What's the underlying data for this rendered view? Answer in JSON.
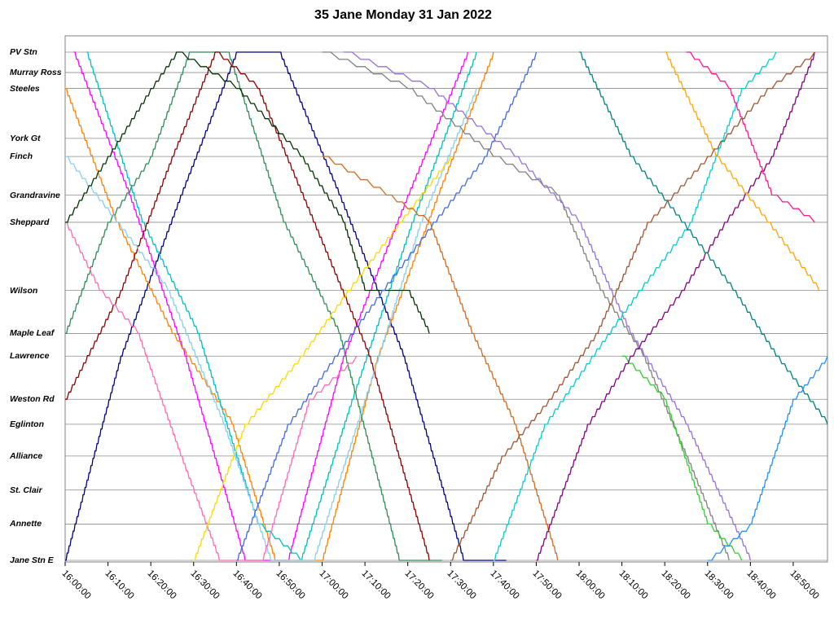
{
  "chart_data": {
    "type": "line",
    "title": "35 Jane Monday 31 Jan 2022",
    "stops": [
      {
        "name": "PV Stn",
        "km": 0
      },
      {
        "name": "Murray Ross",
        "km": 0.9
      },
      {
        "name": "Steeles",
        "km": 1.6
      },
      {
        "name": "York Gt",
        "km": 3.8
      },
      {
        "name": "Finch",
        "km": 4.6
      },
      {
        "name": "Grandravine",
        "km": 6.3
      },
      {
        "name": "Sheppard",
        "km": 7.5
      },
      {
        "name": "Wilson",
        "km": 10.5
      },
      {
        "name": "Maple Leaf",
        "km": 12.4
      },
      {
        "name": "Lawrence",
        "km": 13.4
      },
      {
        "name": "Weston Rd",
        "km": 15.3
      },
      {
        "name": "Eglinton",
        "km": 16.4
      },
      {
        "name": "Alliance",
        "km": 17.8
      },
      {
        "name": "St. Clair",
        "km": 19.3
      },
      {
        "name": "Annette",
        "km": 20.8
      },
      {
        "name": "Jane Stn E",
        "km": 22.4
      }
    ],
    "x_ticks": [
      "16:00:00",
      "16:10:00",
      "16:20:00",
      "16:30:00",
      "16:40:00",
      "16:50:00",
      "17:00:00",
      "17:10:00",
      "17:20:00",
      "17:30:00",
      "17:40:00",
      "17:50:00",
      "18:00:00",
      "18:10:00",
      "18:20:00",
      "18:30:00",
      "18:40:00",
      "18:50:00"
    ],
    "xlim": [
      "16:00:00",
      "18:58:00"
    ],
    "grid": "horizontal lines at each stop",
    "series": [
      {
        "color": "#000080",
        "points": [
          [
            "16:00",
            "Jane Stn E"
          ],
          [
            "16:13",
            "Lawrence"
          ],
          [
            "16:27",
            "Grandravine"
          ],
          [
            "16:40",
            "PV Stn"
          ],
          [
            "16:50",
            "PV Stn"
          ],
          [
            "17:04",
            "Grandravine"
          ],
          [
            "17:19",
            "Lawrence"
          ],
          [
            "17:33",
            "Jane Stn E"
          ],
          [
            "17:43",
            "Jane Stn E"
          ]
        ]
      },
      {
        "color": "#ff00ff",
        "points": [
          [
            "16:02",
            "PV Stn"
          ],
          [
            "16:15",
            "Grandravine"
          ],
          [
            "16:28",
            "Lawrence"
          ],
          [
            "16:42",
            "Jane Stn E"
          ],
          [
            "16:52",
            "Jane Stn E"
          ],
          [
            "17:05",
            "Lawrence"
          ],
          [
            "17:20",
            "Grandravine"
          ],
          [
            "17:34",
            "PV Stn"
          ]
        ]
      },
      {
        "color": "#ff8000",
        "points": [
          [
            "16:00",
            "Steeles"
          ],
          [
            "16:12",
            "Sheppard"
          ],
          [
            "16:25",
            "Maple Leaf"
          ],
          [
            "16:39",
            "Eglinton"
          ],
          [
            "16:49",
            "Jane Stn E"
          ],
          [
            "17:00",
            "Jane Stn E"
          ],
          [
            "17:13",
            "Lawrence"
          ],
          [
            "17:27",
            "Grandravine"
          ],
          [
            "17:40",
            "PV Stn"
          ]
        ]
      },
      {
        "color": "#00bfbf",
        "points": [
          [
            "16:05",
            "PV Stn"
          ],
          [
            "16:18",
            "Sheppard"
          ],
          [
            "16:31",
            "Maple Leaf"
          ],
          [
            "16:45",
            "Annette"
          ],
          [
            "16:55",
            "Jane Stn E"
          ],
          [
            "17:07",
            "Weston Rd"
          ],
          [
            "17:21",
            "Sheppard"
          ],
          [
            "17:36",
            "PV Stn"
          ]
        ]
      },
      {
        "color": "#2e8b57",
        "points": [
          [
            "16:00",
            "Maple Leaf"
          ],
          [
            "16:10",
            "Sheppard"
          ],
          [
            "16:20",
            "Finch"
          ],
          [
            "16:29",
            "PV Stn"
          ],
          [
            "16:38",
            "PV Stn"
          ],
          [
            "16:51",
            "Sheppard"
          ],
          [
            "17:04",
            "Maple Leaf"
          ],
          [
            "17:18",
            "Jane Stn E"
          ],
          [
            "17:28",
            "Jane Stn E"
          ]
        ]
      },
      {
        "color": "#8b0000",
        "points": [
          [
            "16:00",
            "Weston Rd"
          ],
          [
            "16:13",
            "Wilson"
          ],
          [
            "16:25",
            "Finch"
          ],
          [
            "16:35",
            "PV Stn"
          ],
          [
            "16:45",
            "Steeles"
          ],
          [
            "16:58",
            "Sheppard"
          ],
          [
            "17:11",
            "Lawrence"
          ],
          [
            "17:25",
            "Jane Stn E"
          ]
        ]
      },
      {
        "color": "#87ceeb",
        "points": [
          [
            "16:00",
            "Finch"
          ],
          [
            "16:12",
            "Sheppard"
          ],
          [
            "16:24",
            "Wilson"
          ],
          [
            "16:37",
            "Eglinton"
          ],
          [
            "16:48",
            "Jane Stn E"
          ],
          [
            "16:58",
            "Jane Stn E"
          ],
          [
            "17:10",
            "Weston Rd"
          ],
          [
            "17:23",
            "Sheppard"
          ],
          [
            "17:36",
            "Steeles"
          ]
        ]
      },
      {
        "color": "#ff69b4",
        "points": [
          [
            "16:00",
            "Sheppard"
          ],
          [
            "16:08",
            "Wilson"
          ],
          [
            "16:17",
            "Maple Leaf"
          ],
          [
            "16:27",
            "Alliance"
          ],
          [
            "16:36",
            "Jane Stn E"
          ],
          [
            "16:46",
            "Jane Stn E"
          ],
          [
            "16:57",
            "Weston Rd"
          ],
          [
            "17:08",
            "Lawrence"
          ]
        ]
      },
      {
        "color": "#003300",
        "points": [
          [
            "16:00",
            "Sheppard"
          ],
          [
            "16:10",
            "Finch"
          ],
          [
            "16:20",
            "Steeles"
          ],
          [
            "16:26",
            "PV Stn"
          ],
          [
            "16:40",
            "Steeles"
          ],
          [
            "16:55",
            "Finch"
          ],
          [
            "17:05",
            "Sheppard"
          ],
          [
            "17:10",
            "Wilson"
          ],
          [
            "17:20",
            "Wilson"
          ],
          [
            "17:25",
            "Maple Leaf"
          ]
        ]
      },
      {
        "color": "#ffd700",
        "points": [
          [
            "16:30",
            "Jane Stn E"
          ],
          [
            "16:42",
            "Eglinton"
          ],
          [
            "16:55",
            "Lawrence"
          ],
          [
            "17:06",
            "Wilson"
          ],
          [
            "17:18",
            "Sheppard"
          ],
          [
            "17:30",
            "Finch"
          ]
        ]
      },
      {
        "color": "#4169e1",
        "points": [
          [
            "16:40",
            "Jane Stn E"
          ],
          [
            "16:52",
            "Eglinton"
          ],
          [
            "17:03",
            "Lawrence"
          ],
          [
            "17:14",
            "Wilson"
          ],
          [
            "17:26",
            "Sheppard"
          ],
          [
            "17:38",
            "Finch"
          ],
          [
            "17:50",
            "PV Stn"
          ]
        ]
      },
      {
        "color": "#808080",
        "points": [
          [
            "17:00",
            "PV Stn"
          ],
          [
            "17:20",
            "Steeles"
          ],
          [
            "17:40",
            "Finch"
          ],
          [
            "17:55",
            "Grandravine"
          ],
          [
            "18:05",
            "Wilson"
          ],
          [
            "18:15",
            "Lawrence"
          ],
          [
            "18:25",
            "Alliance"
          ],
          [
            "18:35",
            "Jane Stn E"
          ]
        ]
      },
      {
        "color": "#9370db",
        "points": [
          [
            "17:05",
            "PV Stn"
          ],
          [
            "17:25",
            "Steeles"
          ],
          [
            "17:45",
            "Finch"
          ],
          [
            "18:00",
            "Sheppard"
          ],
          [
            "18:12",
            "Maple Leaf"
          ],
          [
            "18:25",
            "Eglinton"
          ],
          [
            "18:40",
            "Jane Stn E"
          ]
        ]
      },
      {
        "color": "#d2691e",
        "points": [
          [
            "17:00",
            "Finch"
          ],
          [
            "17:15",
            "Grandravine"
          ],
          [
            "17:25",
            "Sheppard"
          ],
          [
            "17:35",
            "Maple Leaf"
          ],
          [
            "17:45",
            "Eglinton"
          ],
          [
            "17:55",
            "Jane Stn E"
          ]
        ]
      },
      {
        "color": "#00ced1",
        "points": [
          [
            "17:40",
            "Jane Stn E"
          ],
          [
            "17:52",
            "Eglinton"
          ],
          [
            "18:03",
            "Lawrence"
          ],
          [
            "18:14",
            "Wilson"
          ],
          [
            "18:26",
            "Sheppard"
          ],
          [
            "18:38",
            "Steeles"
          ],
          [
            "18:46",
            "PV Stn"
          ]
        ]
      },
      {
        "color": "#32cd32",
        "points": [
          [
            "18:10",
            "Lawrence"
          ],
          [
            "18:20",
            "Weston Rd"
          ],
          [
            "18:30",
            "Annette"
          ],
          [
            "18:38",
            "Jane Stn E"
          ]
        ]
      },
      {
        "color": "#800080",
        "points": [
          [
            "17:50",
            "Jane Stn E"
          ],
          [
            "18:02",
            "Eglinton"
          ],
          [
            "18:12",
            "Lawrence"
          ],
          [
            "18:24",
            "Wilson"
          ],
          [
            "18:34",
            "Sheppard"
          ],
          [
            "18:45",
            "Finch"
          ],
          [
            "18:55",
            "PV Stn"
          ]
        ]
      },
      {
        "color": "#008080",
        "points": [
          [
            "18:00",
            "PV Stn"
          ],
          [
            "18:12",
            "Finch"
          ],
          [
            "18:24",
            "Sheppard"
          ],
          [
            "18:36",
            "Wilson"
          ],
          [
            "18:46",
            "Lawrence"
          ],
          [
            "18:58",
            "Eglinton"
          ]
        ]
      },
      {
        "color": "#ffa500",
        "points": [
          [
            "18:20",
            "PV Stn"
          ],
          [
            "18:32",
            "Finch"
          ],
          [
            "18:44",
            "Sheppard"
          ],
          [
            "18:56",
            "Wilson"
          ]
        ]
      },
      {
        "color": "#1e90ff",
        "points": [
          [
            "18:30",
            "Jane Stn E"
          ],
          [
            "18:40",
            "Annette"
          ],
          [
            "18:50",
            "Weston Rd"
          ],
          [
            "18:58",
            "Lawrence"
          ]
        ]
      },
      {
        "color": "#ff1493",
        "points": [
          [
            "18:25",
            "PV Stn"
          ],
          [
            "18:35",
            "Steeles"
          ],
          [
            "18:45",
            "Grandravine"
          ],
          [
            "18:55",
            "Sheppard"
          ]
        ]
      },
      {
        "color": "#a0522d",
        "points": [
          [
            "17:30",
            "Jane Stn E"
          ],
          [
            "17:42",
            "Alliance"
          ],
          [
            "17:53",
            "Weston Rd"
          ],
          [
            "18:04",
            "Maple Leaf"
          ],
          [
            "18:16",
            "Sheppard"
          ],
          [
            "18:30",
            "Finch"
          ],
          [
            "18:44",
            "Steeles"
          ],
          [
            "18:55",
            "PV Stn"
          ]
        ]
      }
    ]
  }
}
